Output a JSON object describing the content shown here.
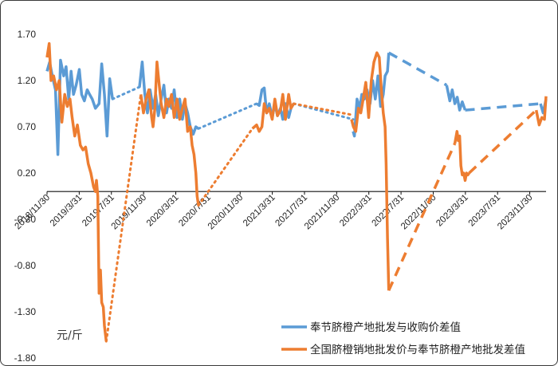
{
  "chart_data": {
    "type": "line",
    "unit_label": "元/斤",
    "ylim": [
      -1.8,
      1.7
    ],
    "y_ticks": [
      "1.70",
      "1.20",
      "0.70",
      "0.20",
      "-0.30",
      "-0.80",
      "-1.30",
      "-1.80"
    ],
    "x_ticks": [
      "2018/11/30",
      "2019/3/31",
      "2019/7/31",
      "2019/11/30",
      "2020/3/31",
      "2020/7/31",
      "2020/11/30",
      "2021/3/31",
      "2021/7/31",
      "2021/11/30",
      "2022/3/31",
      "2022/7/31",
      "2022/11/30",
      "2023/3/31",
      "2023/7/31",
      "2023/11/30"
    ],
    "grid": false,
    "legend_position": "bottom-right",
    "series": [
      {
        "name": "奉节脐橙产地批发与收购价差值",
        "color": "#5b9bd5",
        "segments": [
          {
            "style": "solid",
            "x": [
              "2018-11-30",
              "2018-12-10",
              "2018-12-20",
              "2019-01-01",
              "2019-01-10",
              "2019-01-20",
              "2019-02-01",
              "2019-02-10",
              "2019-02-20",
              "2019-03-01",
              "2019-03-10",
              "2019-03-20",
              "2019-04-01",
              "2019-04-10",
              "2019-04-20",
              "2019-05-01",
              "2019-05-10",
              "2019-05-20",
              "2019-06-01",
              "2019-06-15",
              "2019-06-25",
              "2019-07-05",
              "2019-07-15",
              "2019-07-25",
              "2019-08-05"
            ],
            "y": [
              1.3,
              1.4,
              1.25,
              1.1,
              0.4,
              1.42,
              1.25,
              1.35,
              1.0,
              1.3,
              1.05,
              1.15,
              1.32,
              1.05,
              0.98,
              1.1,
              1.05,
              1.0,
              0.9,
              0.95,
              1.38,
              1.05,
              0.6,
              1.22,
              1.0
            ]
          },
          {
            "style": "dotted",
            "x": [
              "2019-08-05",
              "2019-11-15"
            ],
            "y": [
              1.0,
              1.13
            ]
          },
          {
            "style": "solid",
            "x": [
              "2019-11-15",
              "2019-11-25",
              "2019-12-05",
              "2019-12-15",
              "2019-12-25",
              "2020-01-05",
              "2020-01-15",
              "2020-01-25",
              "2020-02-05",
              "2020-02-15",
              "2020-02-25",
              "2020-03-05",
              "2020-03-15",
              "2020-03-25",
              "2020-04-05",
              "2020-04-15",
              "2020-04-25",
              "2020-05-05",
              "2020-05-15",
              "2020-05-25",
              "2020-06-05",
              "2020-06-15",
              "2020-06-25"
            ],
            "y": [
              1.13,
              1.4,
              1.05,
              0.85,
              1.1,
              0.9,
              1.05,
              0.82,
              1.0,
              1.15,
              0.85,
              1.0,
              0.9,
              1.1,
              0.8,
              1.0,
              0.78,
              0.95,
              0.85,
              0.7,
              0.62,
              0.7,
              0.68
            ]
          },
          {
            "style": "dotted",
            "x": [
              "2020-06-25",
              "2021-01-31"
            ],
            "y": [
              0.68,
              0.95
            ]
          },
          {
            "style": "solid",
            "x": [
              "2021-01-31",
              "2021-02-10",
              "2021-02-20",
              "2021-03-01",
              "2021-03-10",
              "2021-03-20",
              "2021-03-31",
              "2021-04-10",
              "2021-04-20",
              "2021-05-01",
              "2021-05-10",
              "2021-05-20",
              "2021-06-01",
              "2021-06-10",
              "2021-06-20"
            ],
            "y": [
              0.95,
              0.93,
              1.1,
              1.12,
              0.85,
              0.95,
              0.8,
              0.95,
              0.82,
              0.9,
              0.78,
              0.95,
              0.8,
              0.9,
              0.95
            ]
          },
          {
            "style": "dotted",
            "x": [
              "2021-06-20",
              "2022-01-31"
            ],
            "y": [
              0.95,
              0.78
            ]
          },
          {
            "style": "solid",
            "x": [
              "2022-01-31",
              "2022-02-05",
              "2022-02-15",
              "2022-02-25",
              "2022-03-05",
              "2022-03-15",
              "2022-03-25",
              "2022-04-05",
              "2022-04-15",
              "2022-04-25",
              "2022-05-05",
              "2022-05-15",
              "2022-05-25",
              "2022-06-01",
              "2022-06-10",
              "2022-06-15"
            ],
            "y": [
              0.65,
              0.6,
              1.0,
              0.9,
              1.05,
              1.0,
              1.1,
              0.95,
              1.2,
              1.0,
              1.25,
              0.92,
              1.05,
              1.25,
              1.3,
              1.5
            ]
          },
          {
            "style": "dashed",
            "x": [
              "2022-06-15",
              "2023-01-20"
            ],
            "y": [
              1.5,
              1.15
            ]
          },
          {
            "style": "solid",
            "x": [
              "2023-01-20",
              "2023-02-01",
              "2023-02-10",
              "2023-02-20",
              "2023-03-01",
              "2023-03-10",
              "2023-03-20",
              "2023-03-31"
            ],
            "y": [
              1.15,
              0.98,
              1.1,
              0.95,
              1.02,
              0.88,
              0.97,
              0.88
            ]
          },
          {
            "style": "dashed",
            "x": [
              "2023-03-31",
              "2024-01-10"
            ],
            "y": [
              0.88,
              0.95
            ]
          },
          {
            "style": "solid",
            "x": [
              "2024-01-10",
              "2024-01-20",
              "2024-01-31"
            ],
            "y": [
              0.95,
              0.85,
              1.0
            ]
          }
        ]
      },
      {
        "name": "全国脐橙销地批发价与奉节脐橙产地批发差值",
        "color": "#ed7d31",
        "segments": [
          {
            "style": "solid",
            "x": [
              "2018-11-30",
              "2018-12-08",
              "2018-12-15",
              "2018-12-25",
              "2019-01-05",
              "2019-01-15",
              "2019-01-25",
              "2019-02-05",
              "2019-02-15",
              "2019-02-25",
              "2019-03-05",
              "2019-03-15",
              "2019-03-25",
              "2019-04-05",
              "2019-04-15",
              "2019-04-25",
              "2019-05-05",
              "2019-05-15",
              "2019-05-25",
              "2019-06-01",
              "2019-06-05",
              "2019-06-10",
              "2019-06-15",
              "2019-06-20",
              "2019-06-25",
              "2019-07-01",
              "2019-07-05",
              "2019-07-12"
            ],
            "y": [
              1.45,
              1.6,
              1.2,
              1.25,
              1.1,
              1.2,
              0.75,
              1.05,
              0.92,
              1.0,
              0.8,
              0.6,
              0.72,
              0.5,
              0.45,
              0.48,
              0.3,
              0.2,
              0.05,
              0.0,
              0.12,
              -0.05,
              -1.1,
              -0.85,
              -1.2,
              -1.25,
              -1.45,
              -1.62
            ]
          },
          {
            "style": "dotted",
            "x": [
              "2019-07-12",
              "2019-11-20"
            ],
            "y": [
              -1.62,
              1.05
            ]
          },
          {
            "style": "solid",
            "x": [
              "2019-11-20",
              "2019-11-30",
              "2019-12-10",
              "2019-12-20",
              "2019-12-31",
              "2020-01-05",
              "2020-01-12",
              "2020-01-20",
              "2020-01-25",
              "2020-02-05",
              "2020-02-15",
              "2020-02-25",
              "2020-03-05",
              "2020-03-15",
              "2020-03-25",
              "2020-04-05",
              "2020-04-15",
              "2020-04-25",
              "2020-05-05",
              "2020-05-15",
              "2020-05-25",
              "2020-06-01",
              "2020-06-08",
              "2020-06-15",
              "2020-06-20",
              "2020-06-25"
            ],
            "y": [
              1.05,
              0.85,
              1.0,
              1.1,
              0.8,
              0.7,
              0.9,
              1.4,
              1.25,
              0.95,
              0.8,
              1.0,
              0.92,
              1.05,
              0.8,
              1.0,
              0.78,
              0.9,
              1.0,
              0.65,
              0.7,
              0.5,
              0.4,
              0.2,
              -0.05,
              -0.15
            ]
          },
          {
            "style": "dotted",
            "x": [
              "2020-06-25",
              "2021-01-15"
            ],
            "y": [
              -0.15,
              0.68
            ]
          },
          {
            "style": "solid",
            "x": [
              "2021-01-15",
              "2021-01-31",
              "2021-02-10",
              "2021-02-20",
              "2021-03-01",
              "2021-03-10",
              "2021-03-20",
              "2021-03-31",
              "2021-04-10",
              "2021-04-20",
              "2021-05-01",
              "2021-05-10",
              "2021-05-20",
              "2021-06-01",
              "2021-06-10",
              "2021-06-20"
            ],
            "y": [
              0.68,
              0.72,
              0.65,
              0.7,
              0.95,
              0.85,
              0.9,
              0.78,
              1.0,
              0.82,
              0.88,
              1.05,
              0.78,
              1.05,
              0.9,
              0.95
            ]
          },
          {
            "style": "dotted",
            "x": [
              "2021-06-20",
              "2022-01-25"
            ],
            "y": [
              0.95,
              0.83
            ]
          },
          {
            "style": "solid",
            "x": [
              "2022-01-25",
              "2022-02-01",
              "2022-02-10",
              "2022-02-20",
              "2022-03-01",
              "2022-03-10",
              "2022-03-20",
              "2022-03-31",
              "2022-04-10",
              "2022-04-20",
              "2022-05-01",
              "2022-05-10",
              "2022-05-18",
              "2022-05-25",
              "2022-06-01",
              "2022-06-05",
              "2022-06-10",
              "2022-06-15"
            ],
            "y": [
              0.78,
              0.7,
              0.65,
              0.9,
              0.85,
              1.0,
              1.18,
              0.8,
              1.2,
              1.4,
              1.5,
              1.45,
              1.1,
              0.85,
              0.7,
              0.3,
              -0.5,
              -1.07
            ]
          },
          {
            "style": "dashed",
            "x": [
              "2022-06-15",
              "2023-02-20"
            ],
            "y": [
              -1.07,
              0.52
            ]
          },
          {
            "style": "solid",
            "x": [
              "2023-02-20",
              "2023-02-28",
              "2023-03-05",
              "2023-03-10",
              "2023-03-15",
              "2023-03-20",
              "2023-03-25",
              "2023-03-31",
              "2023-04-05",
              "2023-04-10",
              "2023-04-15"
            ],
            "y": [
              0.52,
              0.65,
              0.55,
              0.6,
              0.28,
              0.18,
              0.2,
              0.12,
              0.2,
              0.18,
              0.2
            ]
          },
          {
            "style": "dashed",
            "x": [
              "2023-04-15",
              "2023-12-25"
            ],
            "y": [
              0.2,
              0.88
            ]
          },
          {
            "style": "solid",
            "x": [
              "2023-12-25",
              "2024-01-05",
              "2024-01-15",
              "2024-01-25",
              "2024-01-31"
            ],
            "y": [
              0.88,
              0.72,
              0.8,
              0.78,
              1.03
            ]
          }
        ]
      }
    ]
  }
}
